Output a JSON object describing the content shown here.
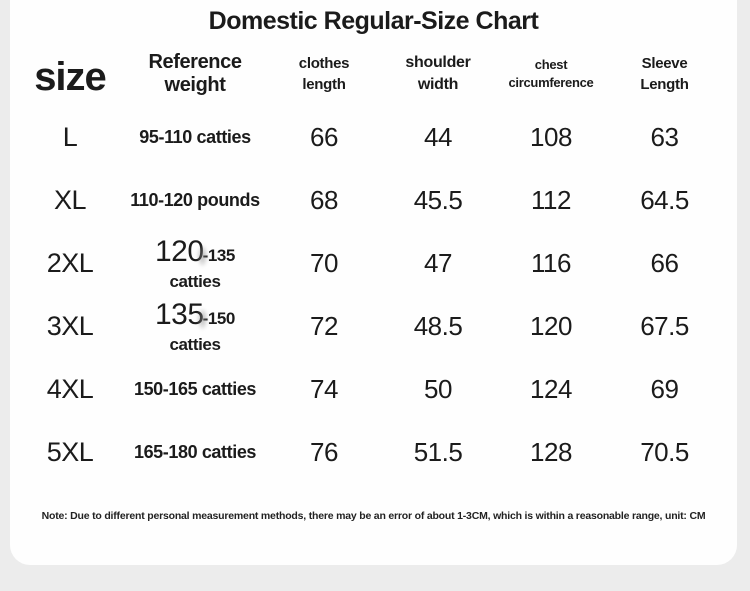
{
  "title": "Domestic Regular-Size Chart",
  "colors": {
    "page_bg": "#ececec",
    "card_bg": "#fefefe",
    "text": "#1b1b1b"
  },
  "table": {
    "columns": {
      "size": "size",
      "weight": "Reference weight",
      "clothes_length_1": "clothes",
      "clothes_length_2": "length",
      "shoulder_width_1": "shoulder",
      "shoulder_width_2": "width",
      "chest_circumference_1": "chest",
      "chest_circumference_2": "circumference",
      "sleeve_length_1": "Sleeve",
      "sleeve_length_2": "Length"
    },
    "rows": [
      {
        "size": "L",
        "weight": "95-110 catties",
        "clothes_length": "66",
        "shoulder_width": "44",
        "chest_circumference": "108",
        "sleeve_length": "63"
      },
      {
        "size": "XL",
        "weight": "110-120 pounds",
        "clothes_length": "68",
        "shoulder_width": "45.5",
        "chest_circumference": "112",
        "sleeve_length": "64.5"
      },
      {
        "size": "2XL",
        "weight_prefix": "120",
        "weight_suffix": "-135 catties",
        "clothes_length": "70",
        "shoulder_width": "47",
        "chest_circumference": "116",
        "sleeve_length": "66"
      },
      {
        "size": "3XL",
        "weight_prefix": "135",
        "weight_suffix": "-150 catties",
        "clothes_length": "72",
        "shoulder_width": "48.5",
        "chest_circumference": "120",
        "sleeve_length": "67.5"
      },
      {
        "size": "4XL",
        "weight": "150-165 catties",
        "clothes_length": "74",
        "shoulder_width": "50",
        "chest_circumference": "124",
        "sleeve_length": "69"
      },
      {
        "size": "5XL",
        "weight": "165-180 catties",
        "clothes_length": "76",
        "shoulder_width": "51.5",
        "chest_circumference": "128",
        "sleeve_length": "70.5"
      }
    ]
  },
  "note": "Note: Due to different personal measurement methods, there may be an error of about 1-3CM, which is within a reasonable range, unit: CM",
  "chart_data": {
    "type": "table",
    "title": "Domestic Regular-Size Chart",
    "columns": [
      "size",
      "Reference weight",
      "clothes length",
      "shoulder width",
      "chest circumference",
      "Sleeve Length"
    ],
    "rows": [
      [
        "L",
        "95-110 catties",
        66,
        44,
        108,
        63
      ],
      [
        "XL",
        "110-120 pounds",
        68,
        45.5,
        112,
        64.5
      ],
      [
        "2XL",
        "120-135 catties",
        70,
        47,
        116,
        66
      ],
      [
        "3XL",
        "135-150 catties",
        72,
        48.5,
        120,
        67.5
      ],
      [
        "4XL",
        "150-165 catties",
        74,
        50,
        124,
        69
      ],
      [
        "5XL",
        "165-180 catties",
        76,
        51.5,
        128,
        70.5
      ]
    ],
    "note": "Note: Due to different personal measurement methods, there may be an error of about 1-3CM, which is within a reasonable range, unit: CM",
    "unit": "CM"
  }
}
